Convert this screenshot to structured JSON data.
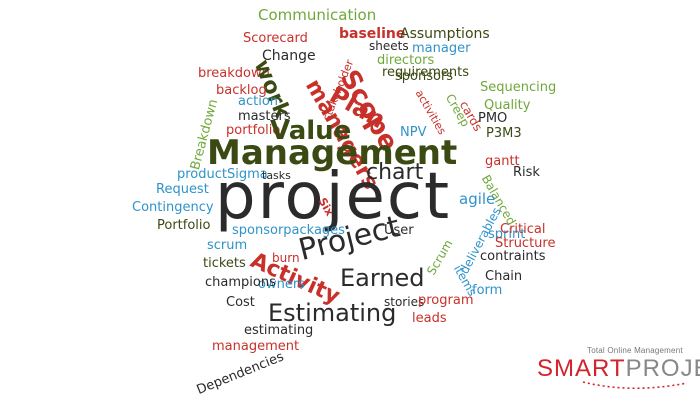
{
  "word_cloud": {
    "words": [
      {
        "text": "Communication",
        "color": "green"
      },
      {
        "text": "Scorecard",
        "color": "red"
      },
      {
        "text": "baseline",
        "color": "red"
      },
      {
        "text": "Assumptions",
        "color": "olive"
      },
      {
        "text": "stakeholder",
        "color": "red"
      },
      {
        "text": "sheets",
        "color": "dark"
      },
      {
        "text": "manager",
        "color": "blue"
      },
      {
        "text": "Change",
        "color": "dark"
      },
      {
        "text": "directors",
        "color": "green"
      },
      {
        "text": "sponsors",
        "color": "olive"
      },
      {
        "text": "managers",
        "color": "red"
      },
      {
        "text": "breakdown",
        "color": "red"
      },
      {
        "text": "requirements",
        "color": "olive"
      },
      {
        "text": "work",
        "color": "olive"
      },
      {
        "text": "Scope",
        "color": "red"
      },
      {
        "text": "backlog",
        "color": "red"
      },
      {
        "text": "Sequencing",
        "color": "green"
      },
      {
        "text": "action",
        "color": "blue"
      },
      {
        "text": "activities",
        "color": "red"
      },
      {
        "text": "Quality",
        "color": "green"
      },
      {
        "text": "Plan",
        "color": "red"
      },
      {
        "text": "masters",
        "color": "dark"
      },
      {
        "text": "Creep",
        "color": "green"
      },
      {
        "text": "cards",
        "color": "red"
      },
      {
        "text": "portfolio",
        "color": "red"
      },
      {
        "text": "PMO",
        "color": "dark"
      },
      {
        "text": "Value",
        "color": "olive"
      },
      {
        "text": "NPV",
        "color": "blue"
      },
      {
        "text": "P3M3",
        "color": "olive"
      },
      {
        "text": "Breakdown",
        "color": "green"
      },
      {
        "text": "Management",
        "color": "olive"
      },
      {
        "text": "gantt",
        "color": "red"
      },
      {
        "text": "productSigma",
        "color": "blue"
      },
      {
        "text": "tasks",
        "color": "dark"
      },
      {
        "text": "chart",
        "color": "dark"
      },
      {
        "text": "Risk",
        "color": "dark"
      },
      {
        "text": "Request",
        "color": "blue"
      },
      {
        "text": "Balanced",
        "color": "green"
      },
      {
        "text": "project",
        "color": "dark"
      },
      {
        "text": "Contingency",
        "color": "blue"
      },
      {
        "text": "Six",
        "color": "red"
      },
      {
        "text": "agile",
        "color": "blue"
      },
      {
        "text": "deliverables",
        "color": "blue"
      },
      {
        "text": "Portfolio",
        "color": "olive"
      },
      {
        "text": "sponsorpackages",
        "color": "blue"
      },
      {
        "text": "User",
        "color": "dark"
      },
      {
        "text": "sprint",
        "color": "blue"
      },
      {
        "text": "Critical",
        "color": "red"
      },
      {
        "text": "scrum",
        "color": "blue"
      },
      {
        "text": "Project",
        "color": "dark"
      },
      {
        "text": "Structure",
        "color": "red"
      },
      {
        "text": "burn",
        "color": "red"
      },
      {
        "text": "Scrum",
        "color": "green"
      },
      {
        "text": "contraints",
        "color": "dark"
      },
      {
        "text": "tickets",
        "color": "olive"
      },
      {
        "text": "Activity",
        "color": "red"
      },
      {
        "text": "Earned",
        "color": "dark"
      },
      {
        "text": "items",
        "color": "blue"
      },
      {
        "text": "Chain",
        "color": "dark"
      },
      {
        "text": "owners",
        "color": "blue"
      },
      {
        "text": "champions",
        "color": "dark"
      },
      {
        "text": "form",
        "color": "blue"
      },
      {
        "text": "Cost",
        "color": "dark"
      },
      {
        "text": "stories",
        "color": "dark"
      },
      {
        "text": "program",
        "color": "red"
      },
      {
        "text": "Estimating",
        "color": "dark"
      },
      {
        "text": "leads",
        "color": "red"
      },
      {
        "text": "estimating",
        "color": "dark"
      },
      {
        "text": "management",
        "color": "red"
      },
      {
        "text": "Dependencies",
        "color": "dark"
      }
    ]
  },
  "logo": {
    "tagline": "Total Online Management",
    "smart": "SMART",
    "projex": "PROJEX",
    "colors": {
      "smart": "#d2232a",
      "projex": "#888888"
    }
  }
}
